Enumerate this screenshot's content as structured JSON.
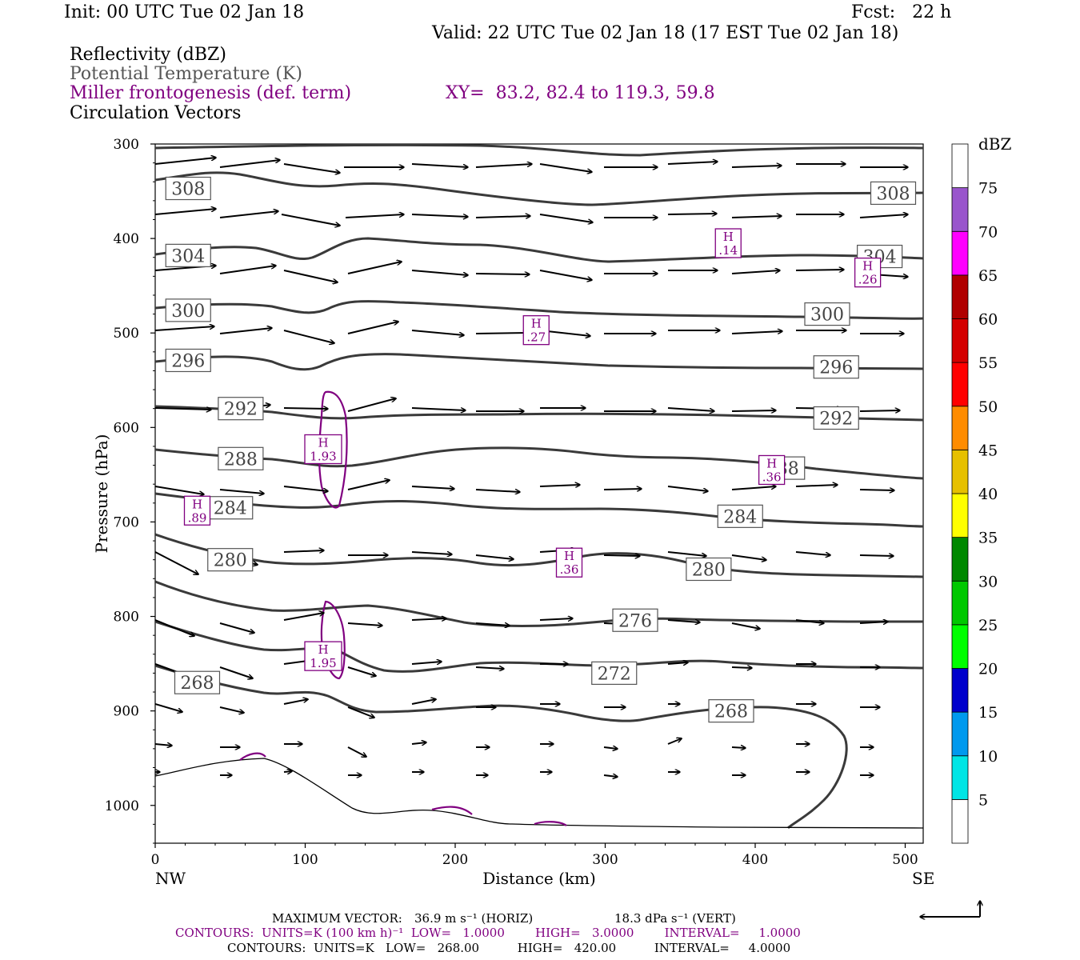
{
  "header": {
    "init": "Init: 00 UTC Tue 02 Jan 18",
    "fcst": "Fcst:   22 h",
    "valid": "Valid: 22 UTC Tue 02 Jan 18 (17 EST Tue 02 Jan 18)",
    "field1": "Reflectivity (dBZ)",
    "field2": "Potential Temperature (K)",
    "field3": "Miller frontogenesis (def. term)",
    "xy": "XY=  83.2, 82.4 to 119.3, 59.8",
    "field4": "Circulation Vectors"
  },
  "chart_data": {
    "type": "cross-section",
    "xlabel": "Distance (km)",
    "ylabel": "Pressure (hPa)",
    "xlim": [
      0,
      512
    ],
    "ylim": [
      1040,
      300
    ],
    "x_ticks": [
      0,
      100,
      200,
      300,
      400,
      500
    ],
    "y_ticks": [
      300,
      400,
      500,
      600,
      700,
      800,
      900,
      1000
    ],
    "left_end": "NW",
    "right_end": "SE",
    "colorbar": {
      "unit": "dBZ",
      "levels": [
        5,
        10,
        15,
        20,
        25,
        30,
        35,
        40,
        45,
        50,
        55,
        60,
        65,
        70,
        75
      ],
      "colors": [
        "#ffffff",
        "#00e5e5",
        "#0099ee",
        "#0000cc",
        "#00ff00",
        "#00c800",
        "#008800",
        "#ffff00",
        "#e6c000",
        "#ff8c00",
        "#ff0000",
        "#d40000",
        "#b00000",
        "#ff00ff",
        "#9955cc",
        "#ffffff"
      ]
    },
    "theta_labels": [
      {
        "value": "308",
        "x": 22,
        "p": 347
      },
      {
        "value": "308",
        "x": 492,
        "p": 352
      },
      {
        "value": "304",
        "x": 22,
        "p": 418
      },
      {
        "value": "304",
        "x": 483,
        "p": 419
      },
      {
        "value": "300",
        "x": 22,
        "p": 476
      },
      {
        "value": "300",
        "x": 448,
        "p": 480
      },
      {
        "value": "296",
        "x": 22,
        "p": 529
      },
      {
        "value": "296",
        "x": 454,
        "p": 536
      },
      {
        "value": "292",
        "x": 57,
        "p": 580
      },
      {
        "value": "292",
        "x": 454,
        "p": 590
      },
      {
        "value": "288",
        "x": 57,
        "p": 633
      },
      {
        "value": "288",
        "x": 418,
        "p": 643
      },
      {
        "value": "284",
        "x": 50,
        "p": 685
      },
      {
        "value": "284",
        "x": 390,
        "p": 694
      },
      {
        "value": "280",
        "x": 50,
        "p": 740
      },
      {
        "value": "280",
        "x": 369,
        "p": 750
      },
      {
        "value": "276",
        "x": 320,
        "p": 804
      },
      {
        "value": "272",
        "x": 306,
        "p": 860
      },
      {
        "value": "268",
        "x": 28,
        "p": 870
      },
      {
        "value": "268",
        "x": 384,
        "p": 900
      }
    ],
    "frontogenesis_maxima": [
      {
        "label": "H",
        "value": ".14",
        "x": 382,
        "p": 405
      },
      {
        "label": "H",
        "value": ".26",
        "x": 475,
        "p": 436
      },
      {
        "label": "H",
        "value": ".27",
        "x": 254,
        "p": 497
      },
      {
        "label": "H",
        "value": "1.93",
        "x": 112,
        "p": 623
      },
      {
        "label": "H",
        "value": ".36",
        "x": 411,
        "p": 645
      },
      {
        "label": "H",
        "value": ".89",
        "x": 28,
        "p": 688
      },
      {
        "label": "H",
        "value": ".36",
        "x": 276,
        "p": 743
      },
      {
        "label": "H",
        "value": "1.95",
        "x": 112,
        "p": 842
      }
    ]
  },
  "footer": {
    "max_label": "MAXIMUM VECTOR:",
    "max_horiz": "36.9 m s⁻¹ (HORIZ)",
    "max_vert": "18.3 dPa s⁻¹ (VERT)",
    "contours1": "CONTOURS:  UNITS=K (100 km h)⁻¹  LOW=   1.0000        HIGH=   3.0000        INTERVAL=     1.0000",
    "contours2": "CONTOURS:  UNITS=K   LOW=   268.00          HIGH=   420.00          INTERVAL=     4.0000"
  }
}
